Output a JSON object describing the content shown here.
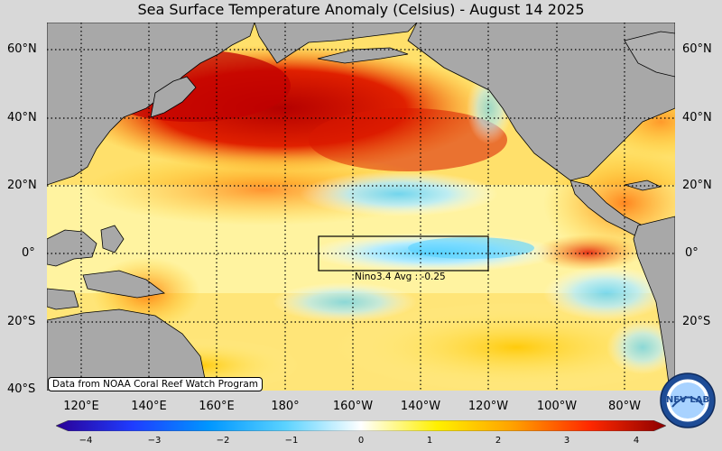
{
  "title": "Sea Surface Temperature Anomaly (Celsius) - August 14 2025",
  "lat_labels": [
    "60°N",
    "40°N",
    "20°N",
    "0°",
    "20°S",
    "40°S"
  ],
  "lon_labels": [
    "120°E",
    "140°E",
    "160°E",
    "180°",
    "160°W",
    "140°W",
    "120°W",
    "100°W",
    "80°W"
  ],
  "credit": "Data from NOAA Coral Reef Watch Program",
  "nino_label": "Nino3.4 Avg : -0.25",
  "colorbar": {
    "ticks": [
      "−4",
      "−3",
      "−2",
      "−1",
      "0",
      "1",
      "2",
      "3",
      "4"
    ],
    "min": -4,
    "max": 4,
    "colors": [
      "#2a0096",
      "#1f3cff",
      "#0096ff",
      "#5ad2ff",
      "#ffffff",
      "#fff000",
      "#ffa000",
      "#ff2800",
      "#8c0000"
    ]
  },
  "logo_text": "NEV LAB",
  "colors": {
    "land": "#a8a8a8",
    "background": "#d8d8d8",
    "warm": "#c80000",
    "cool": "#96e6ff",
    "neutral": "#ffffff"
  }
}
